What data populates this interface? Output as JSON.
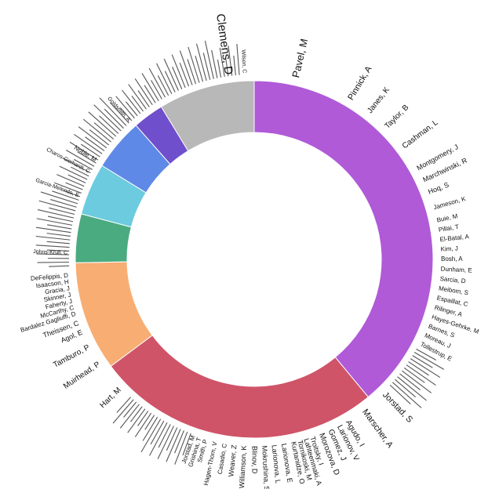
{
  "chart_data": {
    "type": "pie",
    "donut": true,
    "slice_colors": [
      "#b05ad8",
      "#cf5468",
      "#f8ad72",
      "#4aab80",
      "#6ccbdf",
      "#5f89e7",
      "#6f4fcc",
      "#b8b8b8"
    ],
    "slice_values": [
      39.0,
      25.8,
      9.9,
      4.4,
      4.7,
      4.7,
      2.8,
      8.7
    ],
    "labels": [
      {
        "text": "Clemens, D",
        "angle": -8,
        "size": 15
      },
      {
        "text": "Pavel, M",
        "angle": 13,
        "size": 13
      },
      {
        "text": "Pinnick, A",
        "angle": 31,
        "size": 11
      },
      {
        "text": "Janes, K",
        "angle": 38,
        "size": 10
      },
      {
        "text": "Taylor, B",
        "angle": 45,
        "size": 10
      },
      {
        "text": "Cashman, L",
        "angle": 53,
        "size": 10
      },
      {
        "text": "Montgomery, J",
        "angle": 61,
        "size": 9
      },
      {
        "text": "Marchwinski, R",
        "angle": 65,
        "size": 9
      },
      {
        "text": "Hoq, S",
        "angle": 69,
        "size": 9
      },
      {
        "text": "Jameson, K",
        "angle": 74,
        "size": 8
      },
      {
        "text": "Buie, M",
        "angle": 78,
        "size": 8
      },
      {
        "text": "Pillai, T",
        "angle": 81,
        "size": 8
      },
      {
        "text": "El-Batal, A",
        "angle": 84,
        "size": 8
      },
      {
        "text": "Kim, J",
        "angle": 87,
        "size": 8
      },
      {
        "text": "Bosh, A",
        "angle": 90,
        "size": 8
      },
      {
        "text": "Dunham, E",
        "angle": 93,
        "size": 8
      },
      {
        "text": "Sarcia, D",
        "angle": 96,
        "size": 8
      },
      {
        "text": "Meibom, S",
        "angle": 99,
        "size": 8
      },
      {
        "text": "Espaillat, C",
        "angle": 102,
        "size": 8
      },
      {
        "text": "Rilinger, A",
        "angle": 105,
        "size": 8
      },
      {
        "text": "Hayes-Gehrke, M",
        "angle": 108,
        "size": 8
      },
      {
        "text": "Barnes, S",
        "angle": 111,
        "size": 8
      },
      {
        "text": "Moreau, J",
        "angle": 114,
        "size": 8
      },
      {
        "text": "Tollestrup, E",
        "angle": 117,
        "size": 8
      },
      {
        "text": "Jorstad, S",
        "angle": 136,
        "size": 11
      },
      {
        "text": "Marscher, A",
        "angle": 144,
        "size": 11
      },
      {
        "text": "Agudo, I",
        "angle": 150,
        "size": 10
      },
      {
        "text": "Larionov, V",
        "angle": 153,
        "size": 10
      },
      {
        "text": "Gomez, J",
        "angle": 156,
        "size": 10
      },
      {
        "text": "Morozova, D",
        "angle": 159,
        "size": 10
      },
      {
        "text": "Troitsky, I",
        "angle": 162,
        "size": 9
      },
      {
        "text": "Lahteenmaki, A",
        "angle": 164,
        "size": 9
      },
      {
        "text": "Tornikoski, M",
        "angle": 166,
        "size": 9
      },
      {
        "text": "Kurtanidze, O",
        "angle": 168,
        "size": 9
      },
      {
        "text": "Larionova, E",
        "angle": 171,
        "size": 9
      },
      {
        "text": "Larionova, L",
        "angle": 174,
        "size": 9
      },
      {
        "text": "Mokrushina, S",
        "angle": 177,
        "size": 9
      },
      {
        "text": "Blinov, D",
        "angle": 180,
        "size": 9
      },
      {
        "text": "Williamson, K",
        "angle": 183,
        "size": 9
      },
      {
        "text": "Weaver, Z",
        "angle": 186,
        "size": 9
      },
      {
        "text": "Casadio, C",
        "angle": 189,
        "size": 8
      },
      {
        "text": "Hagen-Thorn, V",
        "angle": 192,
        "size": 8
      },
      {
        "text": "Smith, P",
        "angle": 195,
        "size": 8
      },
      {
        "text": "Grishina, T",
        "angle": 197,
        "size": 8
      },
      {
        "text": "Jorstad, M",
        "angle": 199,
        "size": 8
      },
      {
        "text": "Hart, M",
        "angle": 226,
        "size": 10
      },
      {
        "text": "Muirhead, P",
        "angle": 236,
        "size": 10
      },
      {
        "text": "Tamburo, P",
        "angle": 242,
        "size": 10
      },
      {
        "text": "Agol, E",
        "angle": 247,
        "size": 9
      },
      {
        "text": "Theissen, C",
        "angle": 250,
        "size": 9
      },
      {
        "text": "Bardalez Gagliuffi, D",
        "angle": 253,
        "size": 8
      },
      {
        "text": "McCarthy, C",
        "angle": 255,
        "size": 8
      },
      {
        "text": "Faherty, J",
        "angle": 257,
        "size": 8
      },
      {
        "text": "Skinner, J",
        "angle": 259,
        "size": 8
      },
      {
        "text": "Gracia, J",
        "angle": 261,
        "size": 8
      },
      {
        "text": "Isaacson, H",
        "angle": 263,
        "size": 8
      },
      {
        "text": "DeFelippis, D",
        "angle": 265,
        "size": 8
      },
      {
        "text": "Johns-Krull, C",
        "angle": 272,
        "size": 7
      },
      {
        "text": "Garcia-Melendo, E",
        "angle": 290,
        "size": 7
      },
      {
        "text": "Charos-Gerhardt, C",
        "angle": 298,
        "size": 7
      },
      {
        "text": "Noble, M",
        "angle": 302,
        "size": 8
      },
      {
        "text": "Goldsmith, A",
        "angle": 318,
        "size": 7
      },
      {
        "text": "Wilson, C",
        "angle": 357,
        "size": 7
      }
    ]
  }
}
